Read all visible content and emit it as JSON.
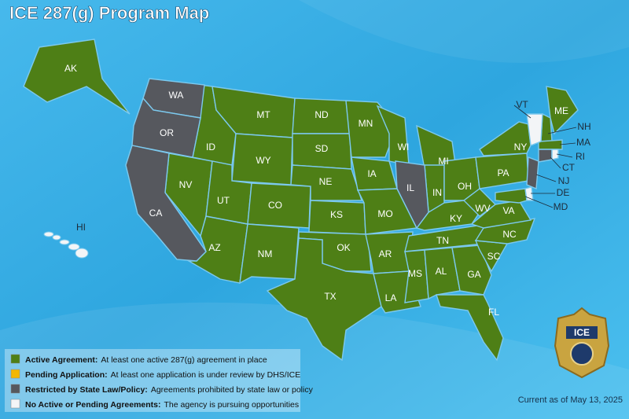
{
  "title": "ICE 287(g) Program Map",
  "legend": [
    {
      "label": "Active Agreement:",
      "text": "At least one active 287(g) agreement in place",
      "color": "#4e7f16",
      "states": [
        "AK",
        "AZ",
        "NV",
        "ID",
        "MT",
        "WY",
        "UT",
        "CO",
        "NM",
        "ND",
        "SD",
        "NE",
        "KS",
        "OK",
        "TX",
        "MN",
        "IA",
        "MO",
        "AR",
        "LA",
        "WI",
        "MI",
        "IN",
        "OH",
        "KY",
        "TN",
        "MS",
        "AL",
        "GA",
        "FL",
        "SC",
        "NC",
        "VA",
        "WV",
        "PA",
        "NY",
        "NH",
        "ME",
        "MA",
        "MD"
      ]
    },
    {
      "label": "Pending Application:",
      "text": "At least one application is under review by DHS/ICE",
      "color": "#f2b705",
      "states": []
    },
    {
      "label": "Restricted by State Law/Policy:",
      "text": "Agreements prohibited by state law or policy",
      "color": "#56585e",
      "states": [
        "WA",
        "OR",
        "CA",
        "IL",
        "NJ",
        "CT"
      ]
    },
    {
      "label": "No Active or Pending Agreements:",
      "text": "The agency is pursuing opportunities",
      "color": "#f3f5f7",
      "states": [
        "VT",
        "RI",
        "DE",
        "HI"
      ]
    }
  ],
  "badge": "ICE",
  "date": "Current as of May 13, 2025"
}
